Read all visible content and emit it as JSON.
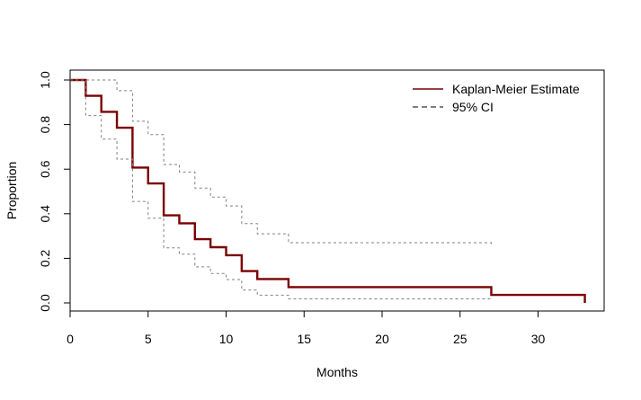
{
  "chart_data": {
    "type": "line",
    "title": "",
    "xlabel": "Months",
    "ylabel": "Proportion",
    "xlim": [
      0,
      34
    ],
    "ylim": [
      0,
      1.0
    ],
    "xticks": [
      "0",
      "5",
      "10",
      "15",
      "20",
      "25",
      "30"
    ],
    "yticks": [
      "0.0",
      "0.2",
      "0.4",
      "0.6",
      "0.8",
      "1.0"
    ],
    "grid": false,
    "legend_position": "top-right",
    "legend": [
      {
        "label": "Kaplan-Meier Estimate",
        "style": "solid",
        "color": "#7b0000"
      },
      {
        "label": "95% CI",
        "style": "dashed",
        "color": "#555555"
      }
    ],
    "series": [
      {
        "name": "Kaplan-Meier Estimate",
        "step": true,
        "color": "#7b0000",
        "x": [
          0,
          1,
          2,
          3,
          4,
          5,
          6,
          7,
          8,
          9,
          10,
          11,
          12,
          14,
          27,
          33
        ],
        "y": [
          1.0,
          0.929,
          0.857,
          0.786,
          0.607,
          0.536,
          0.393,
          0.357,
          0.286,
          0.25,
          0.214,
          0.143,
          0.107,
          0.071,
          0.036,
          0.0
        ]
      },
      {
        "name": "95% CI",
        "step": true,
        "color": "#808080",
        "x": [
          0,
          3,
          4,
          5,
          6,
          7,
          8,
          9,
          10,
          11,
          12,
          14,
          27
        ],
        "y": [
          1.0,
          0.952,
          0.815,
          0.755,
          0.621,
          0.587,
          0.515,
          0.475,
          0.435,
          0.356,
          0.31,
          0.27,
          0.26
        ]
      },
      {
        "name": "95% CI",
        "step": true,
        "color": "#808080",
        "x": [
          0,
          1,
          2,
          3,
          4,
          5,
          6,
          7,
          8,
          9,
          10,
          11,
          12,
          14,
          27
        ],
        "y": [
          1.0,
          0.84,
          0.735,
          0.645,
          0.455,
          0.38,
          0.247,
          0.219,
          0.162,
          0.132,
          0.105,
          0.058,
          0.035,
          0.018,
          0.01
        ]
      }
    ]
  }
}
